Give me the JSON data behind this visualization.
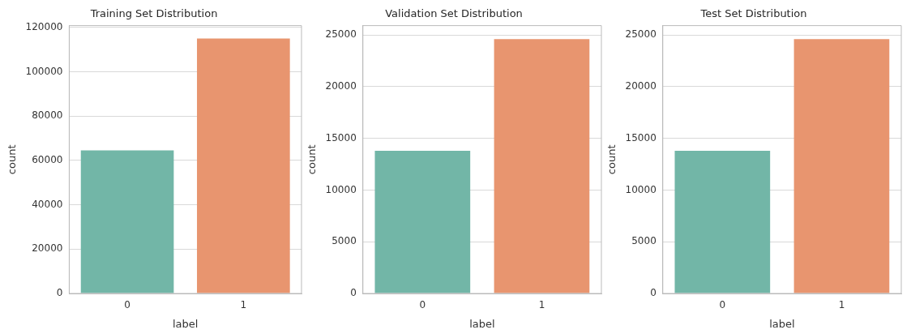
{
  "chart_data": [
    {
      "type": "bar",
      "title": "Training Set Distribution",
      "xlabel": "label",
      "ylabel": "count",
      "categories": [
        "0",
        "1"
      ],
      "values": [
        64500,
        115000
      ],
      "colors": [
        "#72b6a7",
        "#e8956f"
      ],
      "ylim": [
        0,
        120800
      ],
      "yticks": [
        0,
        20000,
        40000,
        60000,
        80000,
        100000,
        120000
      ],
      "grid": "y"
    },
    {
      "type": "bar",
      "title": "Validation Set Distribution",
      "xlabel": "label",
      "ylabel": "count",
      "categories": [
        "0",
        "1"
      ],
      "values": [
        13800,
        24600
      ],
      "colors": [
        "#72b6a7",
        "#e8956f"
      ],
      "ylim": [
        0,
        25900
      ],
      "yticks": [
        0,
        5000,
        10000,
        15000,
        20000,
        25000
      ],
      "grid": "y"
    },
    {
      "type": "bar",
      "title": "Test Set Distribution",
      "xlabel": "label",
      "ylabel": "count",
      "categories": [
        "0",
        "1"
      ],
      "values": [
        13800,
        24600
      ],
      "colors": [
        "#72b6a7",
        "#e8956f"
      ],
      "ylim": [
        0,
        25900
      ],
      "yticks": [
        0,
        5000,
        10000,
        15000,
        20000,
        25000
      ],
      "grid": "y"
    }
  ]
}
